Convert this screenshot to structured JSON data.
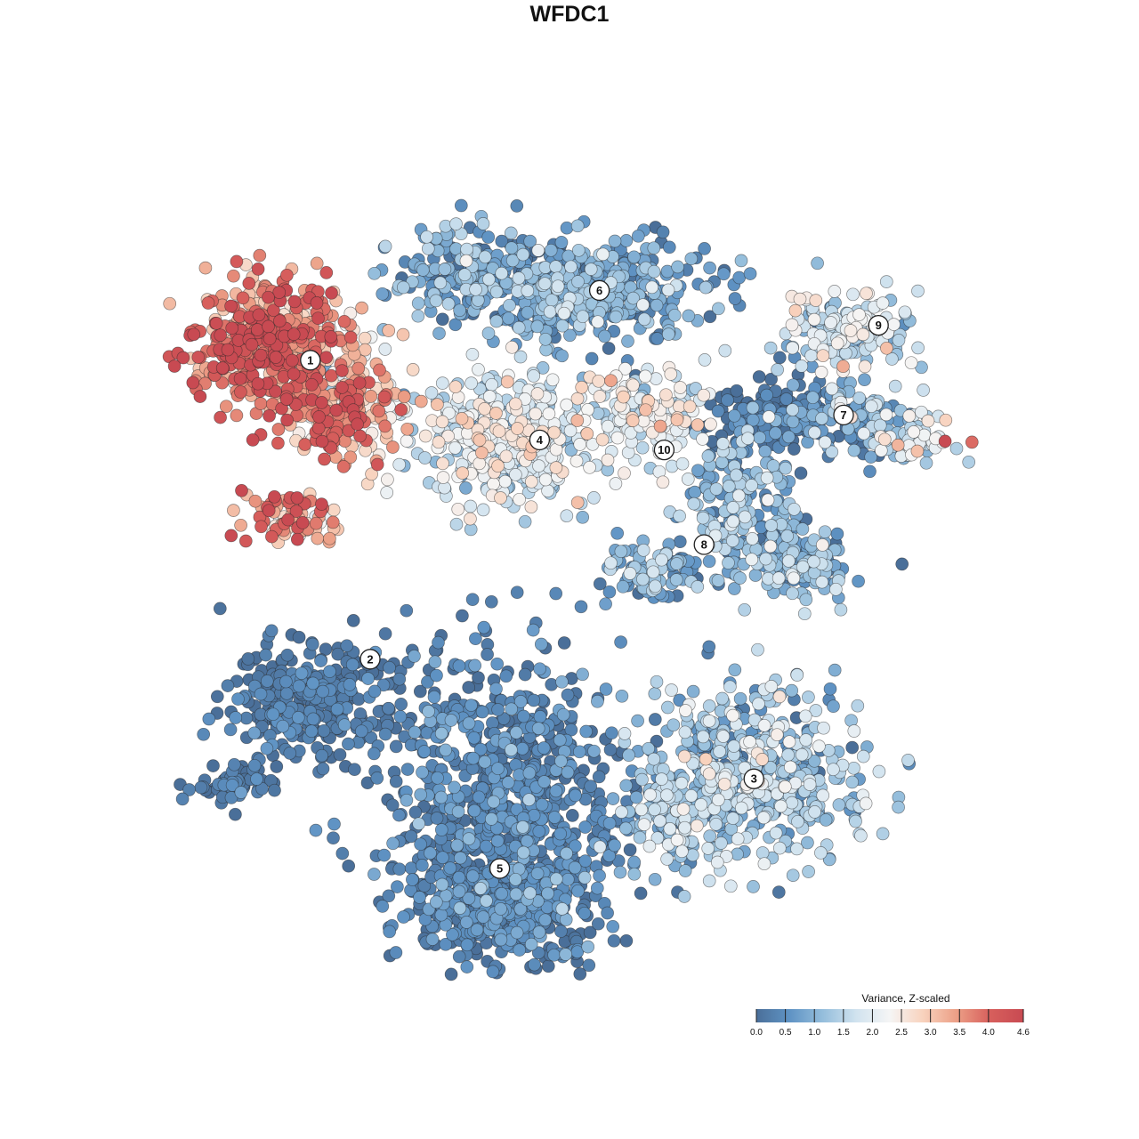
{
  "chart_data": {
    "type": "scatter",
    "title": "WFDC1",
    "xlabel": "",
    "ylabel": "",
    "grid": false,
    "legend": {
      "title": "Variance, Z-scaled",
      "placement": "bottom-right",
      "range": [
        0.0,
        4.6
      ],
      "ticks": [
        "0.0",
        "0.5",
        "1.0",
        "1.5",
        "2.0",
        "2.5",
        "3.0",
        "3.5",
        "4.0",
        "4.6"
      ],
      "colors": [
        "#4a6f99",
        "#5f93c4",
        "#95bedc",
        "#d1e3ef",
        "#f5f5f5",
        "#f8d2bd",
        "#ec9f86",
        "#d75f5c",
        "#c84a52"
      ]
    },
    "clusters": [
      {
        "label": "1",
        "x": -0.52,
        "y": 0.42,
        "mean": 3.1
      },
      {
        "label": "2",
        "x": -0.4,
        "y": -0.18,
        "mean": 0.15
      },
      {
        "label": "3",
        "x": 0.37,
        "y": -0.42,
        "mean": 1.2
      },
      {
        "label": "4",
        "x": -0.06,
        "y": 0.26,
        "mean": 1.9
      },
      {
        "label": "5",
        "x": -0.14,
        "y": -0.6,
        "mean": 0.3
      },
      {
        "label": "6",
        "x": 0.06,
        "y": 0.56,
        "mean": 0.7
      },
      {
        "label": "7",
        "x": 0.55,
        "y": 0.31,
        "mean": 1.0
      },
      {
        "label": "8",
        "x": 0.27,
        "y": 0.05,
        "mean": 0.9
      },
      {
        "label": "9",
        "x": 0.62,
        "y": 0.49,
        "mean": 1.6
      },
      {
        "label": "10",
        "x": 0.19,
        "y": 0.24,
        "mean": 2.0
      }
    ]
  }
}
